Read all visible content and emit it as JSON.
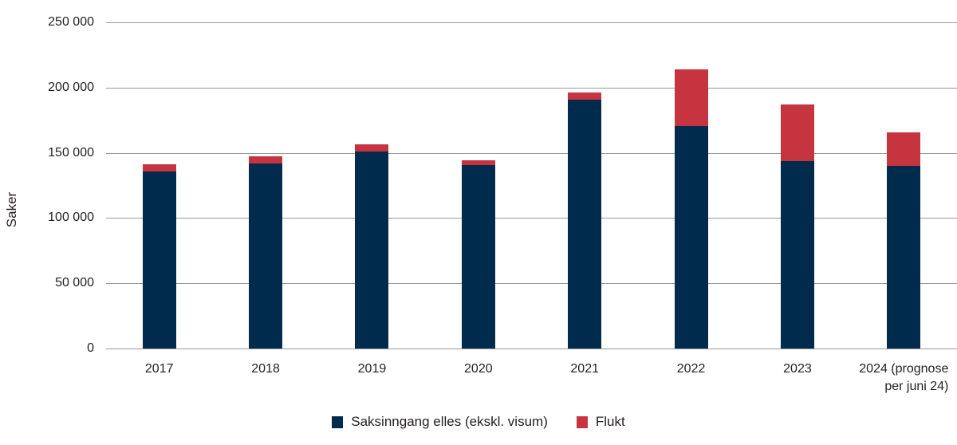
{
  "chart_data": {
    "type": "bar",
    "stacked": true,
    "title": "",
    "xlabel": "",
    "ylabel": "Saker",
    "ylim": [
      0,
      250000
    ],
    "yticks": [
      0,
      50000,
      100000,
      150000,
      200000,
      250000
    ],
    "ytick_labels": [
      "0",
      "50 000",
      "100 000",
      "150 000",
      "200 000",
      "250 000"
    ],
    "grid": true,
    "legend_position": "bottom",
    "categories": [
      "2017",
      "2018",
      "2019",
      "2020",
      "2021",
      "2022",
      "2023",
      "2024 (prognose per juni 24)"
    ],
    "category_lines": [
      [
        "2017"
      ],
      [
        "2018"
      ],
      [
        "2019"
      ],
      [
        "2020"
      ],
      [
        "2021"
      ],
      [
        "2022"
      ],
      [
        "2023"
      ],
      [
        "2024 (prognose",
        "per juni 24)"
      ]
    ],
    "series": [
      {
        "name": "Saksinngang elles (ekskl. visum)",
        "color": "#002b4d",
        "values": [
          135500,
          142000,
          151000,
          140500,
          191000,
          170500,
          143500,
          140000
        ]
      },
      {
        "name": "Flukt",
        "color": "#c63440",
        "values": [
          5500,
          5500,
          5500,
          4000,
          5500,
          43500,
          43500,
          25500
        ]
      }
    ]
  }
}
